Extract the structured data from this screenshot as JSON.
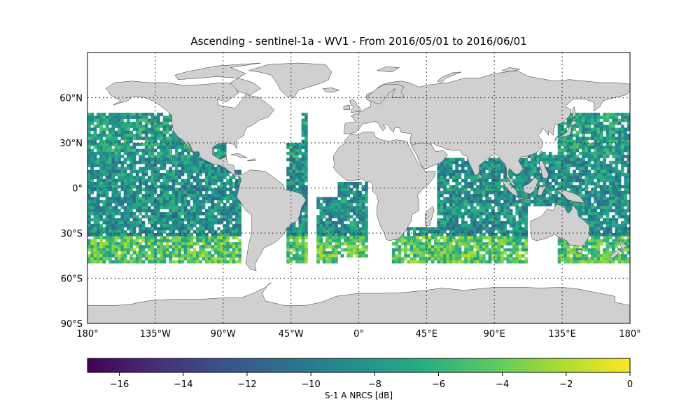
{
  "title": "Ascending - sentinel-1a - WV1 - From 2016/05/01 to 2016/06/01",
  "map": {
    "projection": "plate-carree",
    "lon_range": [
      -180,
      180
    ],
    "lat_range": [
      -90,
      90
    ],
    "land_color": "#d0d0d0",
    "coastline_color": "#333333",
    "gridlines": "dotted",
    "lat_ticks": [
      {
        "value": 60,
        "label": "60°N"
      },
      {
        "value": 30,
        "label": "30°N"
      },
      {
        "value": 0,
        "label": "0°"
      },
      {
        "value": -30,
        "label": "30°S"
      },
      {
        "value": -60,
        "label": "60°S"
      },
      {
        "value": -90,
        "label": "90°S"
      }
    ],
    "lon_ticks": [
      {
        "value": -180,
        "label": "180°"
      },
      {
        "value": -135,
        "label": "135°W"
      },
      {
        "value": -90,
        "label": "90°W"
      },
      {
        "value": -45,
        "label": "45°W"
      },
      {
        "value": 0,
        "label": "0°"
      },
      {
        "value": 45,
        "label": "45°E"
      },
      {
        "value": 90,
        "label": "90°E"
      },
      {
        "value": 135,
        "label": "135°E"
      },
      {
        "value": 180,
        "label": "180°"
      }
    ],
    "data_lat_extent": [
      -50,
      50
    ],
    "colormap": "viridis"
  },
  "colorbar": {
    "label": "S-1 A NRCS [dB]",
    "range": [
      -17,
      0
    ],
    "ticks": [
      {
        "value": -16,
        "label": "−16"
      },
      {
        "value": -14,
        "label": "−14"
      },
      {
        "value": -12,
        "label": "−12"
      },
      {
        "value": -10,
        "label": "−10"
      },
      {
        "value": -8,
        "label": "−8"
      },
      {
        "value": -6,
        "label": "−6"
      },
      {
        "value": -4,
        "label": "−4"
      },
      {
        "value": -2,
        "label": "−2"
      },
      {
        "value": 0,
        "label": "0"
      }
    ]
  }
}
